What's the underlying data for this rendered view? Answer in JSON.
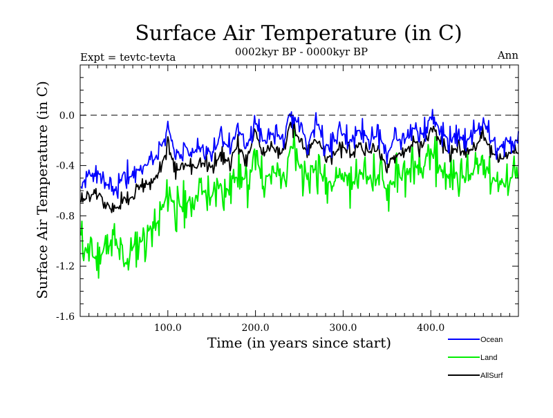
{
  "chart_data": {
    "type": "line",
    "title": "Surface Air Temperature (in C)",
    "subtitle": "0002kyr BP - 0000kyr BP",
    "left_note": "Expt = tevtc-tevta",
    "right_note": "Ann",
    "xlabel": "Time (in years since start)",
    "ylabel": "Surface Air Temperature (in C)",
    "xlim": [
      0,
      500
    ],
    "ylim": [
      -1.6,
      0.4
    ],
    "xticks": [
      100,
      200,
      300,
      400
    ],
    "xtick_labels": [
      "100.0",
      "200.0",
      "300.0",
      "400.0"
    ],
    "yticks": [
      -1.6,
      -1.2,
      -0.8,
      -0.4,
      0.0
    ],
    "ytick_labels": [
      "-1.6",
      "-1.2",
      "-0.8",
      "-0.4",
      "0.0"
    ],
    "reference_line": 0.0,
    "legend_position": "bottom-right",
    "series": [
      {
        "name": "Ocean",
        "color": "#0000ff",
        "x": [
          0,
          10,
          20,
          30,
          40,
          50,
          60,
          70,
          80,
          90,
          100,
          110,
          120,
          130,
          140,
          150,
          160,
          170,
          180,
          190,
          200,
          210,
          220,
          230,
          240,
          250,
          260,
          270,
          280,
          290,
          300,
          310,
          320,
          330,
          340,
          350,
          360,
          370,
          380,
          390,
          400,
          410,
          420,
          430,
          440,
          450,
          460,
          470,
          480,
          490,
          500
        ],
        "values": [
          -0.55,
          -0.5,
          -0.45,
          -0.55,
          -0.6,
          -0.45,
          -0.5,
          -0.4,
          -0.4,
          -0.3,
          -0.1,
          -0.3,
          -0.25,
          -0.3,
          -0.25,
          -0.3,
          -0.2,
          -0.25,
          -0.1,
          -0.25,
          -0.05,
          -0.2,
          -0.15,
          -0.2,
          0.05,
          -0.1,
          -0.2,
          -0.05,
          -0.25,
          -0.2,
          -0.15,
          -0.2,
          -0.1,
          -0.2,
          -0.15,
          -0.3,
          -0.2,
          -0.2,
          -0.1,
          -0.15,
          0.0,
          -0.1,
          -0.2,
          -0.15,
          -0.2,
          -0.15,
          -0.05,
          -0.2,
          -0.25,
          -0.2,
          -0.2
        ]
      },
      {
        "name": "Land",
        "color": "#00ee00",
        "x": [
          0,
          10,
          20,
          30,
          40,
          50,
          60,
          70,
          80,
          90,
          100,
          110,
          120,
          130,
          140,
          150,
          160,
          170,
          180,
          190,
          200,
          210,
          220,
          230,
          240,
          250,
          260,
          270,
          280,
          290,
          300,
          310,
          320,
          330,
          340,
          350,
          360,
          370,
          380,
          390,
          400,
          410,
          420,
          430,
          440,
          450,
          460,
          470,
          480,
          490,
          500
        ],
        "values": [
          -1.0,
          -1.1,
          -1.15,
          -1.05,
          -1.0,
          -1.2,
          -1.05,
          -1.0,
          -0.9,
          -0.85,
          -0.6,
          -0.75,
          -0.7,
          -0.65,
          -0.6,
          -0.65,
          -0.55,
          -0.6,
          -0.45,
          -0.55,
          -0.35,
          -0.5,
          -0.45,
          -0.5,
          -0.25,
          -0.4,
          -0.5,
          -0.4,
          -0.55,
          -0.5,
          -0.45,
          -0.55,
          -0.45,
          -0.5,
          -0.5,
          -0.6,
          -0.5,
          -0.5,
          -0.4,
          -0.45,
          -0.3,
          -0.4,
          -0.5,
          -0.45,
          -0.5,
          -0.45,
          -0.35,
          -0.5,
          -0.55,
          -0.5,
          -0.5
        ]
      },
      {
        "name": "AllSurf",
        "color": "#000000",
        "x": [
          0,
          10,
          20,
          30,
          40,
          50,
          60,
          70,
          80,
          90,
          100,
          110,
          120,
          130,
          140,
          150,
          160,
          170,
          180,
          190,
          200,
          210,
          220,
          230,
          240,
          250,
          260,
          270,
          280,
          290,
          300,
          310,
          320,
          330,
          340,
          350,
          360,
          370,
          380,
          390,
          400,
          410,
          420,
          430,
          440,
          450,
          460,
          470,
          480,
          490,
          500
        ],
        "values": [
          -0.7,
          -0.65,
          -0.6,
          -0.7,
          -0.75,
          -0.65,
          -0.65,
          -0.55,
          -0.55,
          -0.45,
          -0.25,
          -0.45,
          -0.4,
          -0.42,
          -0.38,
          -0.42,
          -0.32,
          -0.38,
          -0.22,
          -0.36,
          -0.15,
          -0.3,
          -0.26,
          -0.3,
          -0.05,
          -0.2,
          -0.3,
          -0.16,
          -0.35,
          -0.3,
          -0.25,
          -0.32,
          -0.22,
          -0.3,
          -0.28,
          -0.4,
          -0.3,
          -0.3,
          -0.2,
          -0.26,
          -0.1,
          -0.2,
          -0.3,
          -0.26,
          -0.3,
          -0.26,
          -0.16,
          -0.3,
          -0.35,
          -0.3,
          -0.3
        ]
      }
    ]
  }
}
